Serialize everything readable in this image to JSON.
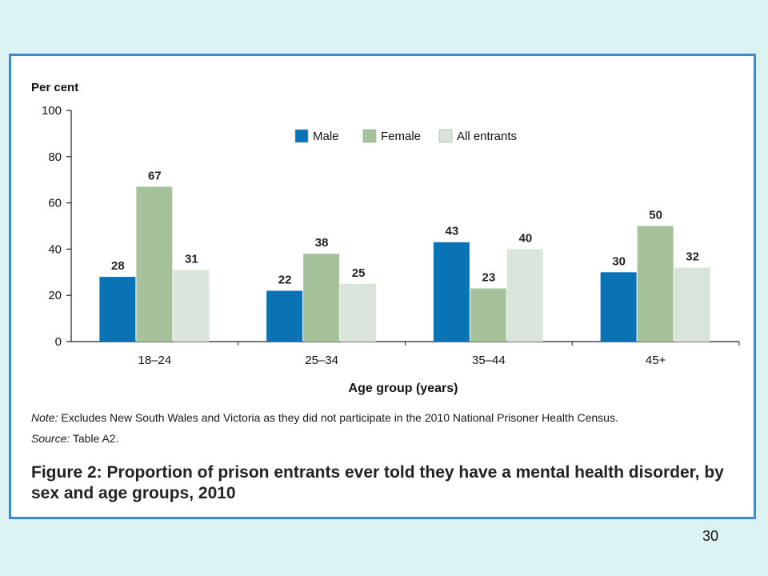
{
  "chart_data": {
    "type": "bar",
    "categories": [
      "18–24",
      "25–34",
      "35–44",
      "45+"
    ],
    "series": [
      {
        "name": "Male",
        "color": "#0a73b6",
        "values": [
          28,
          22,
          43,
          30
        ]
      },
      {
        "name": "Female",
        "color": "#a5c29b",
        "values": [
          67,
          38,
          23,
          50
        ]
      },
      {
        "name": "All entrants",
        "color": "#d9e4da",
        "values": [
          31,
          25,
          40,
          32
        ]
      }
    ],
    "ylabel": "Per cent",
    "xlabel": "Age group (years)",
    "ylim": [
      0,
      100
    ],
    "yticks": [
      0,
      20,
      40,
      60,
      80,
      100
    ],
    "legend_position": "top-center",
    "grid": false
  },
  "note": {
    "label": "Note:",
    "text": " Excludes New South Wales and Victoria as they did not participate in the 2010 National Prisoner Health Census."
  },
  "source": {
    "label": "Source:",
    "text": " Table A2."
  },
  "caption": "Figure 2: Proportion of prison entrants ever told they have a mental health disorder, by sex and age groups, 2010",
  "page_number": "30"
}
